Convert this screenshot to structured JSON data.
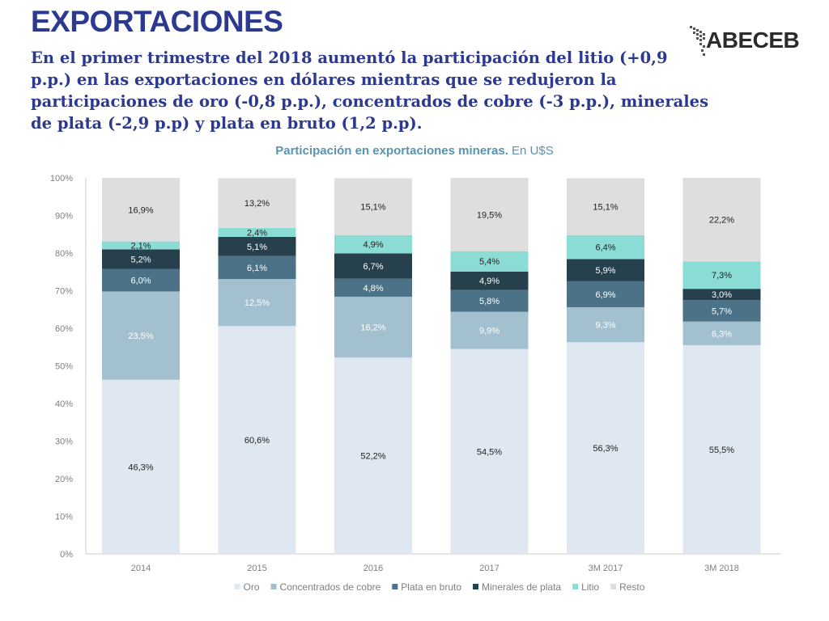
{
  "header": {
    "title": "EXPORTACIONES",
    "subtitle": "En el primer trimestre del 2018 aumentó la participación del litio (+0,9 p.p.) en las exportaciones en dólares mientras que se redujeron la participaciones de oro (-0,8 p.p.), concentrados de cobre (-3 p.p.), minerales de plata (-2,9 p.p) y plata en bruto (1,2 p.p).",
    "logo_text": "ABECEB"
  },
  "colors": {
    "title": "#2b3990",
    "chart_title": "#5b93ad",
    "axis_text": "#7f7f7f"
  },
  "chart_data": {
    "type": "bar",
    "stacked": true,
    "title_bold": "Participación en exportaciones mineras.",
    "title_rest": "En U$S",
    "categories": [
      "2014",
      "2015",
      "2016",
      "2017",
      "3M 2017",
      "3M 2018"
    ],
    "ylim": [
      0,
      100
    ],
    "yticks": [
      "0%",
      "10%",
      "20%",
      "30%",
      "40%",
      "50%",
      "60%",
      "70%",
      "80%",
      "90%",
      "100%"
    ],
    "legend_position": "bottom",
    "series": [
      {
        "name": "Oro",
        "color": "#dfe8f0",
        "label_color": "#222222",
        "values": [
          46.3,
          60.6,
          52.2,
          54.5,
          56.3,
          55.5
        ],
        "labels": [
          "46,3%",
          "60,6%",
          "52,2%",
          "54,5%",
          "56,3%",
          "55,5%"
        ]
      },
      {
        "name": "Concentrados de cobre",
        "color": "#a3c0ce",
        "label_color": "#ffffff",
        "values": [
          23.5,
          12.5,
          16.2,
          9.9,
          9.3,
          6.3
        ],
        "labels": [
          "23,5%",
          "12,5%",
          "16,2%",
          "9,9%",
          "9,3%",
          "6,3%"
        ]
      },
      {
        "name": "Plata en bruto",
        "color": "#4b7287",
        "label_color": "#ffffff",
        "values": [
          6.0,
          6.1,
          4.8,
          5.8,
          6.9,
          5.7
        ],
        "labels": [
          "6,0%",
          "6,1%",
          "4,8%",
          "5,8%",
          "6,9%",
          "5,7%"
        ]
      },
      {
        "name": "Minerales de plata",
        "color": "#26404e",
        "label_color": "#ffffff",
        "values": [
          5.2,
          5.1,
          6.7,
          4.9,
          5.9,
          3.0
        ],
        "labels": [
          "5,2%",
          "5,1%",
          "6,7%",
          "4,9%",
          "5,9%",
          "3,0%"
        ]
      },
      {
        "name": "Litio",
        "color": "#8cdcd6",
        "label_color": "#222222",
        "values": [
          2.1,
          2.4,
          4.9,
          5.4,
          6.4,
          7.3
        ],
        "labels": [
          "2,1%",
          "2,4%",
          "4,9%",
          "5,4%",
          "6,4%",
          "7,3%"
        ]
      },
      {
        "name": "Resto",
        "color": "#dedede",
        "label_color": "#222222",
        "values": [
          16.9,
          13.2,
          15.1,
          19.5,
          15.1,
          22.2
        ],
        "labels": [
          "16,9%",
          "13,2%",
          "15,1%",
          "19,5%",
          "15,1%",
          "22,2%"
        ]
      }
    ]
  }
}
